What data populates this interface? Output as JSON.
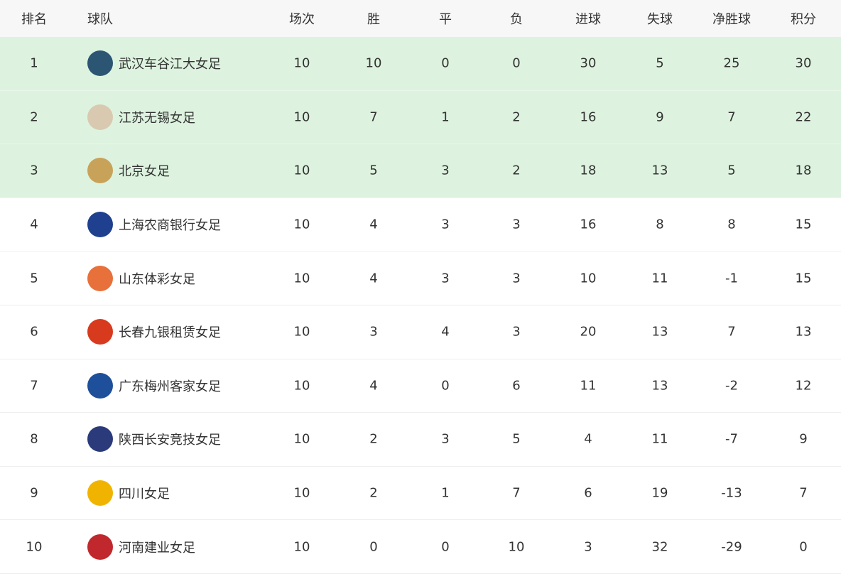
{
  "headers": [
    "排名",
    "球队",
    "场次",
    "胜",
    "平",
    "负",
    "进球",
    "失球",
    "净胜球",
    "积分"
  ],
  "highlight_color": "#ddf3df",
  "rows": [
    {
      "rank": "1",
      "team": "武汉车谷江大女足",
      "logo_color": "#2b5573",
      "p": "10",
      "w": "10",
      "d": "0",
      "l": "0",
      "gf": "30",
      "ga": "5",
      "gd": "25",
      "pts": "30"
    },
    {
      "rank": "2",
      "team": "江苏无锡女足",
      "logo_color": "#d9c9b0",
      "p": "10",
      "w": "7",
      "d": "1",
      "l": "2",
      "gf": "16",
      "ga": "9",
      "gd": "7",
      "pts": "22"
    },
    {
      "rank": "3",
      "team": "北京女足",
      "logo_color": "#c9a25a",
      "p": "10",
      "w": "5",
      "d": "3",
      "l": "2",
      "gf": "18",
      "ga": "13",
      "gd": "5",
      "pts": "18"
    },
    {
      "rank": "4",
      "team": "上海农商银行女足",
      "logo_color": "#1f3f8f",
      "p": "10",
      "w": "4",
      "d": "3",
      "l": "3",
      "gf": "16",
      "ga": "8",
      "gd": "8",
      "pts": "15"
    },
    {
      "rank": "5",
      "team": "山东体彩女足",
      "logo_color": "#e8703a",
      "p": "10",
      "w": "4",
      "d": "3",
      "l": "3",
      "gf": "10",
      "ga": "11",
      "gd": "-1",
      "pts": "15"
    },
    {
      "rank": "6",
      "team": "长春九银租赁女足",
      "logo_color": "#d83a1e",
      "p": "10",
      "w": "3",
      "d": "4",
      "l": "3",
      "gf": "20",
      "ga": "13",
      "gd": "7",
      "pts": "13"
    },
    {
      "rank": "7",
      "team": "广东梅州客家女足",
      "logo_color": "#1e4f9a",
      "p": "10",
      "w": "4",
      "d": "0",
      "l": "6",
      "gf": "11",
      "ga": "13",
      "gd": "-2",
      "pts": "12"
    },
    {
      "rank": "8",
      "team": "陕西长安竞技女足",
      "logo_color": "#2a3a7a",
      "p": "10",
      "w": "2",
      "d": "3",
      "l": "5",
      "gf": "4",
      "ga": "11",
      "gd": "-7",
      "pts": "9"
    },
    {
      "rank": "9",
      "team": "四川女足",
      "logo_color": "#f0b400",
      "p": "10",
      "w": "2",
      "d": "1",
      "l": "7",
      "gf": "6",
      "ga": "19",
      "gd": "-13",
      "pts": "7"
    },
    {
      "rank": "10",
      "team": "河南建业女足",
      "logo_color": "#c0282d",
      "p": "10",
      "w": "0",
      "d": "0",
      "l": "10",
      "gf": "3",
      "ga": "32",
      "gd": "-29",
      "pts": "0"
    }
  ]
}
